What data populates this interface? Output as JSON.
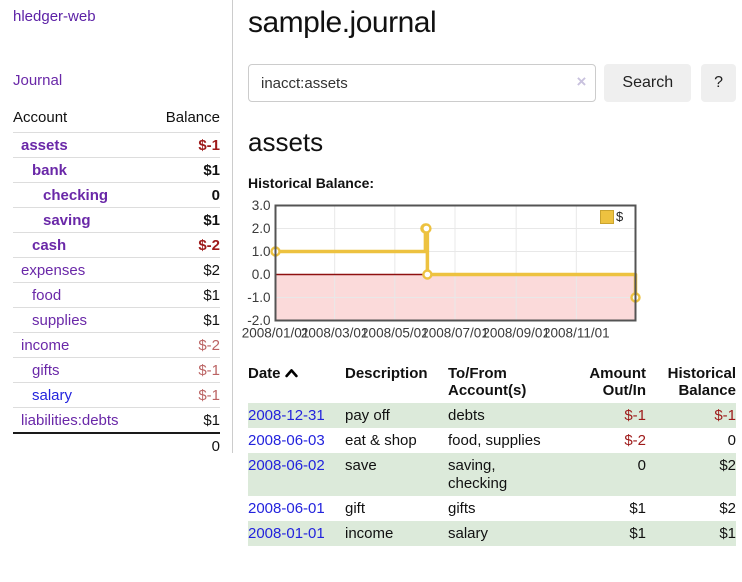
{
  "app_title": "hledger-web",
  "sidebar": {
    "journal_link": "Journal",
    "accounts_table": {
      "account_header": "Account",
      "balance_header": "Balance",
      "rows": [
        {
          "account": "assets",
          "balance": "$-1",
          "indent": 0,
          "bold": true,
          "negative": true
        },
        {
          "account": "bank",
          "balance": "$1",
          "indent": 1,
          "bold": true,
          "negative": false
        },
        {
          "account": "checking",
          "balance": "0",
          "indent": 2,
          "bold": true,
          "negative": false
        },
        {
          "account": "saving",
          "balance": "$1",
          "indent": 2,
          "bold": true,
          "negative": false
        },
        {
          "account": "cash",
          "balance": "$-2",
          "indent": 1,
          "bold": true,
          "negative": true
        },
        {
          "account": "expenses",
          "balance": "$2",
          "indent": 0,
          "bold": false,
          "negative": false
        },
        {
          "account": "food",
          "balance": "$1",
          "indent": 1,
          "bold": false,
          "negative": false
        },
        {
          "account": "supplies",
          "balance": "$1",
          "indent": 1,
          "bold": false,
          "negative": false
        },
        {
          "account": "income",
          "balance": "$-2",
          "indent": 0,
          "bold": false,
          "negative": true
        },
        {
          "account": "gifts",
          "balance": "$-1",
          "indent": 1,
          "bold": false,
          "negative": true
        },
        {
          "account": "salary",
          "balance": "$-1",
          "indent": 1,
          "bold": false,
          "negative": true,
          "unvisited": true
        },
        {
          "account": "liabilities:debts",
          "balance": "$1",
          "indent": 0,
          "bold": false,
          "negative": false
        }
      ],
      "total": "0"
    }
  },
  "main": {
    "title": "sample.journal",
    "search": {
      "value": "inacct:assets",
      "clear_icon": "×",
      "search_button": "Search",
      "help_button": "?"
    },
    "account_heading": "assets",
    "chart_title": "Historical Balance:"
  },
  "chart_data": {
    "type": "line",
    "title": "Historical Balance",
    "x_range": [
      "2008-01-01",
      "2008-12-31"
    ],
    "y_range": [
      -2,
      3
    ],
    "x_tick_labels": [
      "2008/01/01",
      "2008/03/01",
      "2008/05/01",
      "2008/07/01",
      "2008/09/01",
      "2008/11/01"
    ],
    "x_tick_dates": [
      "2008-01-01",
      "2008-03-01",
      "2008-05-01",
      "2008-07-01",
      "2008-09-01",
      "2008-11-01"
    ],
    "y_tick_labels": [
      "3.0",
      "2.0",
      "1.0",
      "0.0",
      "-1.0",
      "-2.0"
    ],
    "y_tick_values": [
      3,
      2,
      1,
      0,
      -1,
      -2
    ],
    "grid": true,
    "legend": {
      "label": "$",
      "position": "top-right"
    },
    "series": [
      {
        "name": "$",
        "color": "#EDC240",
        "steps": true,
        "points": [
          [
            "2008-01-01",
            1
          ],
          [
            "2008-06-01",
            2
          ],
          [
            "2008-06-02",
            2
          ],
          [
            "2008-06-03",
            0
          ],
          [
            "2008-12-31",
            -1
          ]
        ]
      }
    ],
    "colors": {
      "negative_region": "#fbdada",
      "zero_line": "#8f1010",
      "grid_line": "#e8e8e8",
      "border": "#545454",
      "point_fill": "#ffffff"
    }
  },
  "register_table": {
    "headers": {
      "date": "Date",
      "sort_icon": "chevron-up",
      "description": "Description",
      "tofrom_line1": "To/From",
      "tofrom_line2": "Account(s)",
      "amount_line1": "Amount",
      "amount_line2": "Out/In",
      "balance_line1": "Historical",
      "balance_line2": "Balance"
    },
    "rows": [
      {
        "date": "2008-12-31",
        "description": "pay off",
        "accounts": "debts",
        "amount": "$-1",
        "amount_negative": true,
        "balance": "$-1",
        "balance_negative": true,
        "shaded": true
      },
      {
        "date": "2008-06-03",
        "description": "eat & shop",
        "accounts": "food, supplies",
        "amount": "$-2",
        "amount_negative": true,
        "balance": "0",
        "balance_negative": false,
        "shaded": false
      },
      {
        "date": "2008-06-02",
        "description": "save",
        "accounts": "saving, checking",
        "amount": "0",
        "amount_negative": false,
        "balance": "$2",
        "balance_negative": false,
        "shaded": true
      },
      {
        "date": "2008-06-01",
        "description": "gift",
        "accounts": "gifts",
        "amount": "$1",
        "amount_negative": false,
        "balance": "$2",
        "balance_negative": false,
        "shaded": false
      },
      {
        "date": "2008-01-01",
        "description": "income",
        "accounts": "salary",
        "amount": "$1",
        "amount_negative": false,
        "balance": "$1",
        "balance_negative": false,
        "shaded": true
      }
    ]
  },
  "colors": {
    "link_purple": "#6a28a8",
    "link_blue": "#2323dd",
    "negative_dark_red": "#9e1a1a",
    "negative_light_red": "#bb6363",
    "row_stripe_green": "#dceada",
    "series_yellow": "#EDC240"
  }
}
